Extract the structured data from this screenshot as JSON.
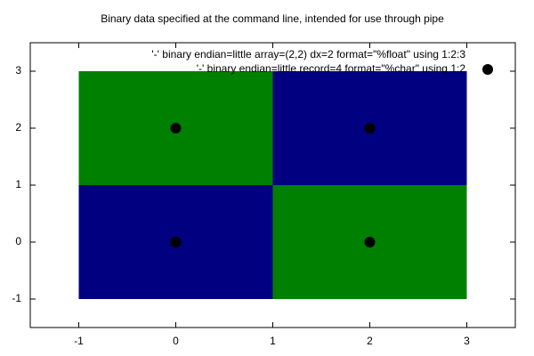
{
  "chart_data": {
    "type": "heatmap",
    "title": "Binary data specified at the command line, intended for use through pipe",
    "xlim": [
      -1.5,
      3.5
    ],
    "ylim": [
      -1.5,
      3.5
    ],
    "xticks": [
      -1,
      0,
      1,
      2,
      3
    ],
    "yticks": [
      -1,
      0,
      1,
      2,
      3
    ],
    "series": [
      {
        "name": "'-' binary endian=little array=(2,2) dx=2 format=\"%float\" using 1:2:3",
        "type": "image",
        "cell_size": 2,
        "x": [
          0,
          2,
          0,
          2
        ],
        "y": [
          0,
          0,
          2,
          2
        ],
        "colors": [
          "#000080",
          "#008000",
          "#008000",
          "#000080"
        ]
      },
      {
        "name": "'-' binary endian=little record=4 format=\"%char\" using 1:2",
        "type": "points",
        "x": [
          0,
          2,
          0,
          2
        ],
        "y": [
          0,
          0,
          2,
          2
        ],
        "color": "#000000"
      }
    ]
  }
}
